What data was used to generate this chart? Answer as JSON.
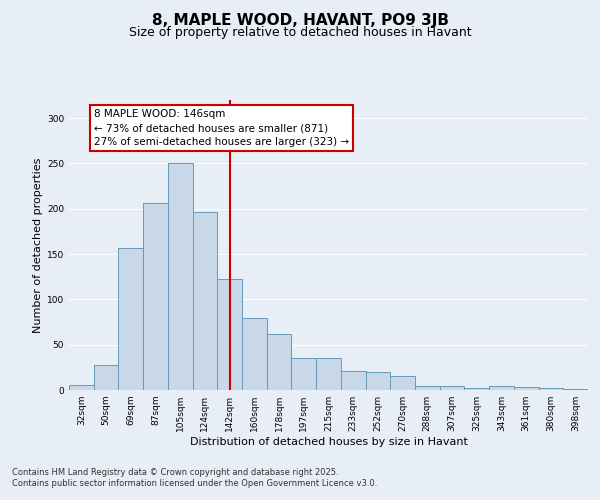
{
  "title": "8, MAPLE WOOD, HAVANT, PO9 3JB",
  "subtitle": "Size of property relative to detached houses in Havant",
  "xlabel": "Distribution of detached houses by size in Havant",
  "ylabel": "Number of detached properties",
  "categories": [
    "32sqm",
    "50sqm",
    "69sqm",
    "87sqm",
    "105sqm",
    "124sqm",
    "142sqm",
    "160sqm",
    "178sqm",
    "197sqm",
    "215sqm",
    "233sqm",
    "252sqm",
    "270sqm",
    "288sqm",
    "307sqm",
    "325sqm",
    "343sqm",
    "361sqm",
    "380sqm",
    "398sqm"
  ],
  "values": [
    5,
    28,
    157,
    206,
    250,
    196,
    123,
    79,
    62,
    35,
    35,
    21,
    20,
    16,
    4,
    4,
    2,
    4,
    3,
    2,
    1
  ],
  "bar_color": "#c8d8e8",
  "bar_edge_color": "#6699bb",
  "vline_x_index": 6,
  "vline_color": "#cc0000",
  "annotation_text": "8 MAPLE WOOD: 146sqm\n← 73% of detached houses are smaller (871)\n27% of semi-detached houses are larger (323) →",
  "annotation_box_color": "#ffffff",
  "annotation_box_edge": "#cc0000",
  "ylim": [
    0,
    320
  ],
  "yticks": [
    0,
    50,
    100,
    150,
    200,
    250,
    300
  ],
  "background_color": "#e8eef5",
  "fig_background_color": "#e8eef5",
  "footer_text": "Contains HM Land Registry data © Crown copyright and database right 2025.\nContains public sector information licensed under the Open Government Licence v3.0.",
  "title_fontsize": 11,
  "subtitle_fontsize": 9,
  "xlabel_fontsize": 8,
  "ylabel_fontsize": 8,
  "tick_fontsize": 6.5,
  "annotation_fontsize": 7.5,
  "footer_fontsize": 6
}
